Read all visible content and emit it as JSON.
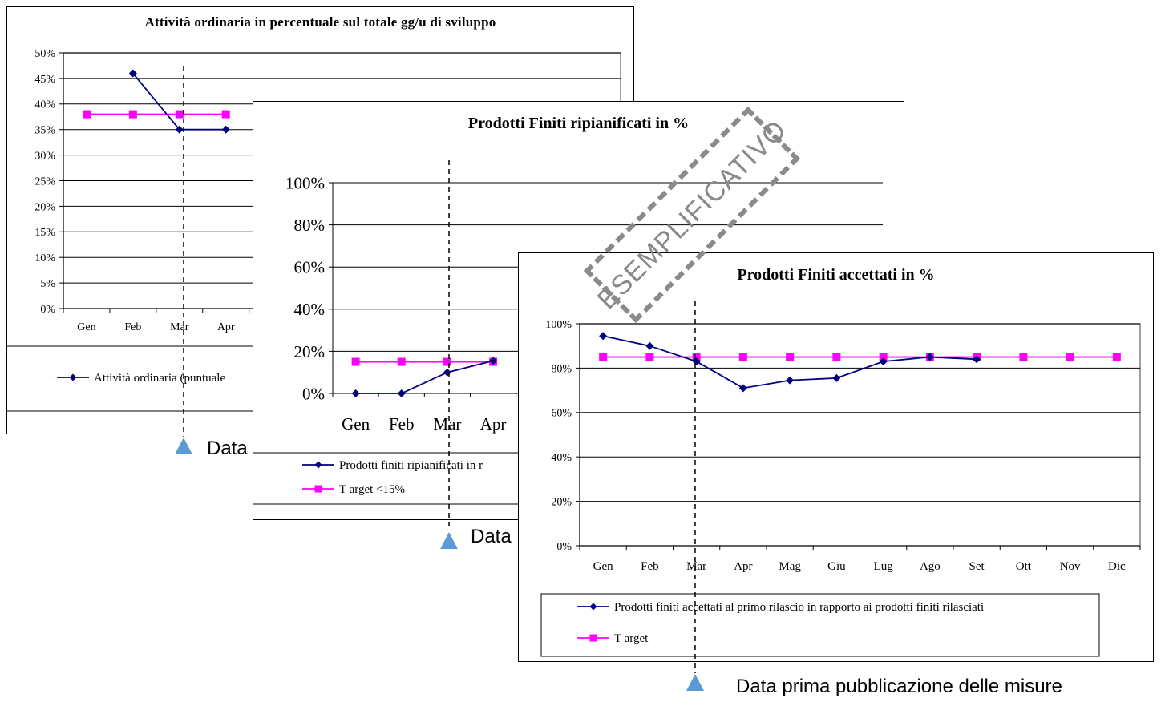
{
  "colors": {
    "series": "#000080",
    "target": "#ff00ff",
    "marker_release": "#5b9bd5",
    "stamp": "#8a8a8a"
  },
  "stamp_text": "ESEMPLIFICATIVO",
  "chart_data": [
    {
      "type": "line",
      "title": "Attività ordinaria in percentuale sul totale gg/u di sviluppo",
      "categories": [
        "Gen",
        "Feb",
        "Mar",
        "Apr"
      ],
      "ylim": [
        0,
        50
      ],
      "yticks": [
        "50%",
        "45%",
        "40%",
        "35%",
        "30%",
        "25%",
        "20%",
        "15%",
        "10%",
        "5%",
        "0%"
      ],
      "series": [
        {
          "name": "Attività ordinaria (puntuale",
          "values": [
            null,
            46,
            35,
            35
          ],
          "marker": "diamond"
        },
        {
          "name": "",
          "values": [
            38,
            38,
            38,
            38
          ],
          "marker": "square"
        }
      ],
      "grid": true,
      "legend": "bottom",
      "release_caption": "Data"
    },
    {
      "type": "line",
      "title": "Prodotti Finiti ripianificati in %",
      "categories": [
        "Gen",
        "Feb",
        "Mar",
        "Apr"
      ],
      "ylim": [
        0,
        100
      ],
      "yticks": [
        "100%",
        "80%",
        "60%",
        "40%",
        "20%",
        "0%"
      ],
      "series": [
        {
          "name": "Prodotti finiti ripianificati in r",
          "values": [
            0,
            0,
            10,
            15.5
          ],
          "marker": "diamond"
        },
        {
          "name": "T arget <15%",
          "values": [
            15,
            15,
            15,
            15
          ],
          "marker": "square"
        }
      ],
      "grid": true,
      "legend": "bottom",
      "release_caption": "Data"
    },
    {
      "type": "line",
      "title": "Prodotti Finiti accettati in %",
      "categories": [
        "Gen",
        "Feb",
        "Mar",
        "Apr",
        "Mag",
        "Giu",
        "Lug",
        "Ago",
        "Set",
        "Ott",
        "Nov",
        "Dic"
      ],
      "ylim": [
        0,
        100
      ],
      "yticks": [
        "100%",
        "80%",
        "60%",
        "40%",
        "20%",
        "0%"
      ],
      "series": [
        {
          "name": "Prodotti finiti accettati al primo rilascio in rapporto ai prodotti finiti rilasciati",
          "values": [
            94.5,
            90,
            83,
            71,
            74.5,
            75.5,
            83,
            85,
            84,
            null,
            null,
            null
          ],
          "marker": "diamond"
        },
        {
          "name": "T arget",
          "values": [
            85,
            85,
            85,
            85,
            85,
            85,
            85,
            85,
            85,
            85,
            85,
            85
          ],
          "marker": "square"
        }
      ],
      "grid": true,
      "legend": "bottom",
      "release_caption": "Data prima pubblicazione delle misure"
    }
  ]
}
